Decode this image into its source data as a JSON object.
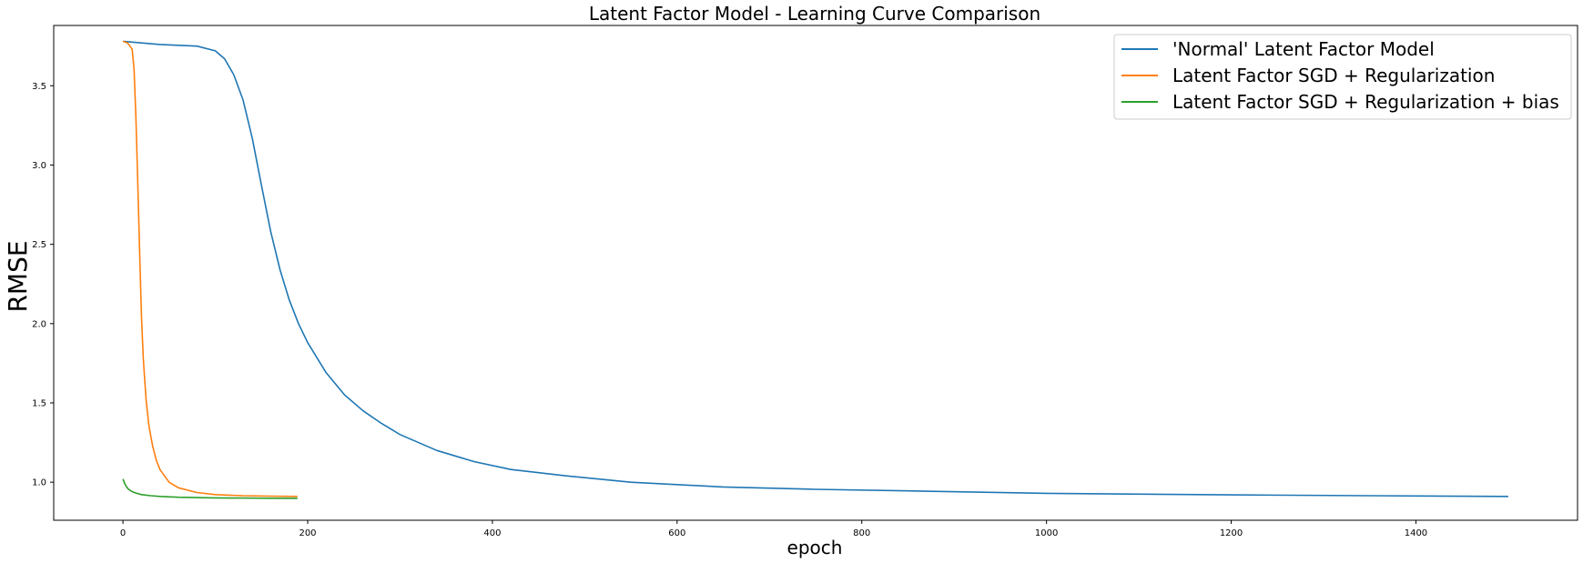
{
  "chart_data": {
    "type": "line",
    "title": "Latent Factor Model - Learning Curve Comparison",
    "xlabel": "epoch",
    "ylabel": "RMSE",
    "xlim": [
      -75,
      1575
    ],
    "ylim": [
      0.76,
      3.88
    ],
    "xticks": [
      0,
      200,
      400,
      600,
      800,
      1000,
      1200,
      1400
    ],
    "yticks": [
      1.0,
      1.5,
      2.0,
      2.5,
      3.0,
      3.5
    ],
    "ytick_labels": [
      "1.0",
      "1.5",
      "2.0",
      "2.5",
      "3.0",
      "3.5"
    ],
    "grid": false,
    "legend_position": "top-right",
    "series": [
      {
        "name": "'Normal' Latent Factor Model",
        "color": "#1f77b4",
        "x": [
          0,
          20,
          40,
          60,
          80,
          100,
          110,
          120,
          130,
          140,
          150,
          160,
          170,
          180,
          190,
          200,
          220,
          240,
          260,
          280,
          300,
          340,
          380,
          420,
          480,
          550,
          650,
          750,
          850,
          1000,
          1200,
          1400,
          1500
        ],
        "y": [
          3.78,
          3.77,
          3.76,
          3.755,
          3.75,
          3.72,
          3.67,
          3.57,
          3.41,
          3.17,
          2.87,
          2.58,
          2.34,
          2.15,
          2.0,
          1.88,
          1.69,
          1.55,
          1.45,
          1.37,
          1.3,
          1.2,
          1.13,
          1.08,
          1.04,
          1.0,
          0.97,
          0.955,
          0.945,
          0.93,
          0.92,
          0.913,
          0.91
        ]
      },
      {
        "name": "Latent Factor SGD + Regularization",
        "color": "#ff7f0e",
        "x": [
          0,
          5,
          10,
          12,
          14,
          16,
          18,
          20,
          22,
          25,
          28,
          32,
          36,
          40,
          50,
          60,
          80,
          100,
          130,
          160,
          189
        ],
        "y": [
          3.78,
          3.77,
          3.73,
          3.6,
          3.3,
          2.9,
          2.45,
          2.05,
          1.78,
          1.52,
          1.36,
          1.23,
          1.14,
          1.08,
          1.0,
          0.965,
          0.935,
          0.922,
          0.915,
          0.912,
          0.91
        ]
      },
      {
        "name": "Latent Factor SGD + Regularization + bias",
        "color": "#2ca02c",
        "x": [
          0,
          2,
          4,
          6,
          10,
          15,
          20,
          30,
          40,
          60,
          80,
          100,
          130,
          160,
          189
        ],
        "y": [
          1.02,
          0.99,
          0.97,
          0.955,
          0.94,
          0.93,
          0.922,
          0.915,
          0.91,
          0.905,
          0.903,
          0.901,
          0.9,
          0.899,
          0.898
        ]
      }
    ]
  }
}
